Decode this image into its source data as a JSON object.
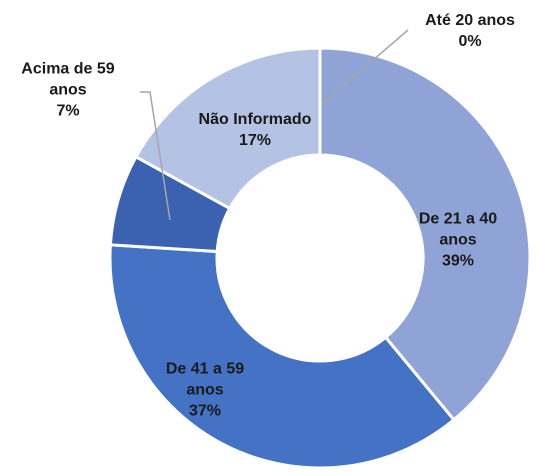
{
  "chart_data": {
    "type": "donut",
    "categories": [
      "Até 20 anos",
      "De 21 a 40 anos",
      "De 41 a 59 anos",
      "Acima de 59 anos",
      "Não Informado"
    ],
    "values": [
      0,
      39,
      37,
      7,
      17
    ],
    "value_labels": [
      "0%",
      "39%",
      "37%",
      "7%",
      "17%"
    ],
    "colors": [
      "#8fa3d6",
      "#8fa3d6",
      "#4472c4",
      "#3a62b0",
      "#b4c2e4"
    ]
  }
}
